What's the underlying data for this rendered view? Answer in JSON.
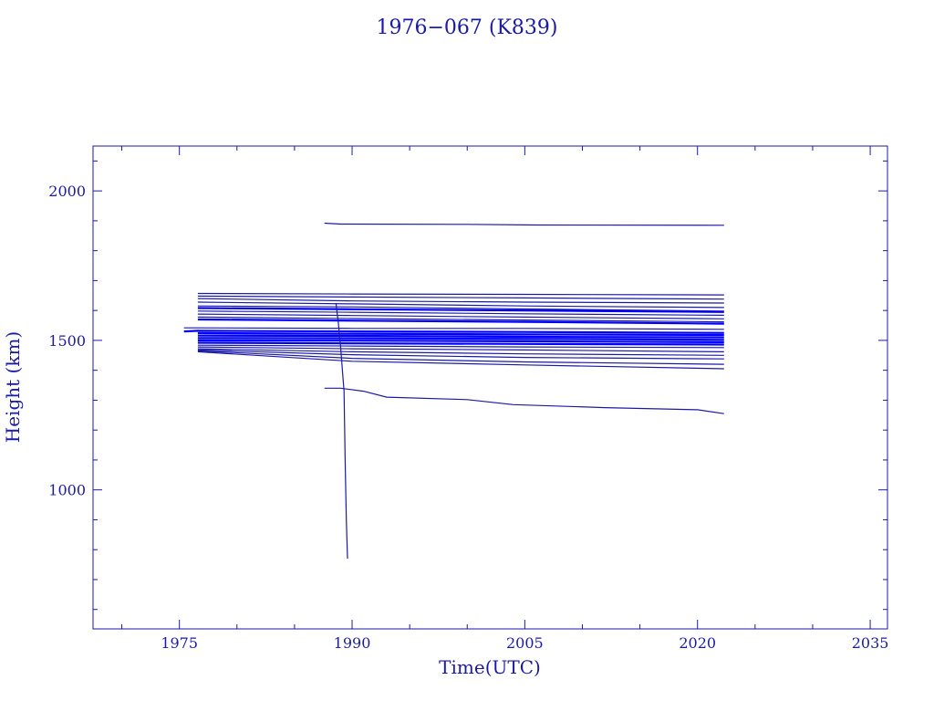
{
  "chart_data": {
    "type": "line",
    "title": "1976−067 (K839)",
    "xlabel": "Time(UTC)",
    "ylabel": "Height (km)",
    "xlim": [
      1967.5,
      2036.5
    ],
    "ylim": [
      535,
      2150
    ],
    "x_ticks": [
      1975,
      1990,
      2005,
      2020,
      2035
    ],
    "y_ticks": [
      1000,
      1500,
      2000
    ],
    "grid": false,
    "colors": {
      "axis": "#1a1aa6",
      "dark": "#1a1aa6",
      "bright": "#0000ff"
    },
    "series": [
      {
        "color": "dark",
        "points": [
          [
            1987.6,
            1892
          ],
          [
            1989.0,
            1889
          ],
          [
            2000.0,
            1888
          ],
          [
            2006.0,
            1886
          ],
          [
            2022.3,
            1885
          ]
        ]
      },
      {
        "color": "dark",
        "points": [
          [
            1976.6,
            1657
          ],
          [
            1990.0,
            1655
          ],
          [
            2005.0,
            1654
          ],
          [
            2022.3,
            1652
          ]
        ]
      },
      {
        "color": "dark",
        "points": [
          [
            1976.6,
            1648
          ],
          [
            1990.0,
            1645
          ],
          [
            2005.0,
            1642
          ],
          [
            2022.3,
            1638
          ]
        ]
      },
      {
        "color": "dark",
        "points": [
          [
            1976.6,
            1640
          ],
          [
            1990.0,
            1632
          ],
          [
            2005.0,
            1628
          ],
          [
            2022.3,
            1625
          ]
        ]
      },
      {
        "color": "dark",
        "points": [
          [
            1976.6,
            1628
          ],
          [
            1990.0,
            1622
          ],
          [
            2005.0,
            1615
          ],
          [
            2022.3,
            1610
          ]
        ]
      },
      {
        "color": "dark",
        "points": [
          [
            1976.6,
            1615
          ],
          [
            1990.0,
            1612
          ],
          [
            2005.0,
            1605
          ],
          [
            2022.3,
            1598
          ]
        ]
      },
      {
        "color": "bright",
        "points": [
          [
            1976.6,
            1608
          ],
          [
            1990.0,
            1604
          ],
          [
            2005.0,
            1600
          ],
          [
            2022.3,
            1595
          ]
        ]
      },
      {
        "color": "dark",
        "points": [
          [
            1976.6,
            1598
          ],
          [
            1990.0,
            1594
          ],
          [
            2005.0,
            1589
          ],
          [
            2022.3,
            1584
          ]
        ]
      },
      {
        "color": "dark",
        "points": [
          [
            1976.6,
            1588
          ],
          [
            1990.0,
            1583
          ],
          [
            2005.0,
            1578
          ],
          [
            2022.3,
            1572
          ]
        ]
      },
      {
        "color": "dark",
        "points": [
          [
            1976.6,
            1578
          ],
          [
            1990.0,
            1573
          ],
          [
            2005.0,
            1568
          ],
          [
            2022.3,
            1562
          ]
        ]
      },
      {
        "color": "bright",
        "points": [
          [
            1976.6,
            1570
          ],
          [
            1990.0,
            1566
          ],
          [
            2005.0,
            1562
          ],
          [
            2022.3,
            1556
          ]
        ]
      },
      {
        "color": "dark",
        "points": [
          [
            1975.4,
            1542
          ],
          [
            1976.6,
            1542
          ],
          [
            1990.0,
            1540
          ],
          [
            2005.0,
            1540
          ],
          [
            2022.3,
            1537
          ]
        ]
      },
      {
        "color": "bright",
        "points": [
          [
            1975.4,
            1530
          ],
          [
            1976.6,
            1532
          ],
          [
            1990.0,
            1530
          ],
          [
            2005.0,
            1528
          ],
          [
            2022.3,
            1525
          ]
        ]
      },
      {
        "color": "bright",
        "points": [
          [
            1976.6,
            1524
          ],
          [
            1990.0,
            1522
          ],
          [
            2005.0,
            1520
          ],
          [
            2022.3,
            1518
          ]
        ]
      },
      {
        "color": "bright",
        "points": [
          [
            1976.6,
            1516
          ],
          [
            1990.0,
            1515
          ],
          [
            2005.0,
            1512
          ],
          [
            2022.3,
            1510
          ]
        ]
      },
      {
        "color": "bright",
        "points": [
          [
            1976.6,
            1508
          ],
          [
            1990.0,
            1507
          ],
          [
            2005.0,
            1505
          ],
          [
            2022.3,
            1502
          ]
        ]
      },
      {
        "color": "bright",
        "points": [
          [
            1976.6,
            1500
          ],
          [
            1990.0,
            1499
          ],
          [
            2005.0,
            1497
          ],
          [
            2022.3,
            1494
          ]
        ]
      },
      {
        "color": "bright",
        "points": [
          [
            1976.6,
            1492
          ],
          [
            1990.0,
            1490
          ],
          [
            2005.0,
            1488
          ],
          [
            2022.3,
            1486
          ]
        ]
      },
      {
        "color": "dark",
        "points": [
          [
            1976.6,
            1484
          ],
          [
            1990.0,
            1481
          ],
          [
            2005.0,
            1478
          ],
          [
            2022.3,
            1476
          ]
        ]
      },
      {
        "color": "dark",
        "points": [
          [
            1976.6,
            1478
          ],
          [
            1990.0,
            1472
          ],
          [
            2005.0,
            1468
          ],
          [
            2022.3,
            1462
          ]
        ]
      },
      {
        "color": "dark",
        "points": [
          [
            1976.6,
            1472
          ],
          [
            1990.0,
            1462
          ],
          [
            2005.0,
            1455
          ],
          [
            2022.3,
            1450
          ]
        ]
      },
      {
        "color": "dark",
        "points": [
          [
            1976.6,
            1468
          ],
          [
            1990.0,
            1452
          ],
          [
            2005.0,
            1443
          ],
          [
            2022.3,
            1438
          ]
        ]
      },
      {
        "color": "dark",
        "points": [
          [
            1976.6,
            1465
          ],
          [
            1990.0,
            1440
          ],
          [
            2005.0,
            1428
          ],
          [
            2022.3,
            1420
          ]
        ]
      },
      {
        "color": "dark",
        "points": [
          [
            1976.6,
            1462
          ],
          [
            1990.0,
            1430
          ],
          [
            2005.0,
            1418
          ],
          [
            2022.3,
            1405
          ]
        ]
      },
      {
        "color": "dark",
        "points": [
          [
            1987.6,
            1340
          ],
          [
            1989.0,
            1340
          ],
          [
            1991.0,
            1330
          ],
          [
            1993.0,
            1310
          ],
          [
            2000.0,
            1302
          ],
          [
            2004.0,
            1285
          ],
          [
            2012.0,
            1275
          ],
          [
            2020.0,
            1268
          ],
          [
            2022.3,
            1255
          ]
        ]
      },
      {
        "color": "dark",
        "points": [
          [
            1988.6,
            1625
          ],
          [
            1988.8,
            1560
          ],
          [
            1989.0,
            1480
          ],
          [
            1989.2,
            1380
          ],
          [
            1989.3,
            1330
          ],
          [
            1989.4,
            1100
          ],
          [
            1989.5,
            900
          ],
          [
            1989.6,
            770
          ]
        ]
      }
    ]
  }
}
